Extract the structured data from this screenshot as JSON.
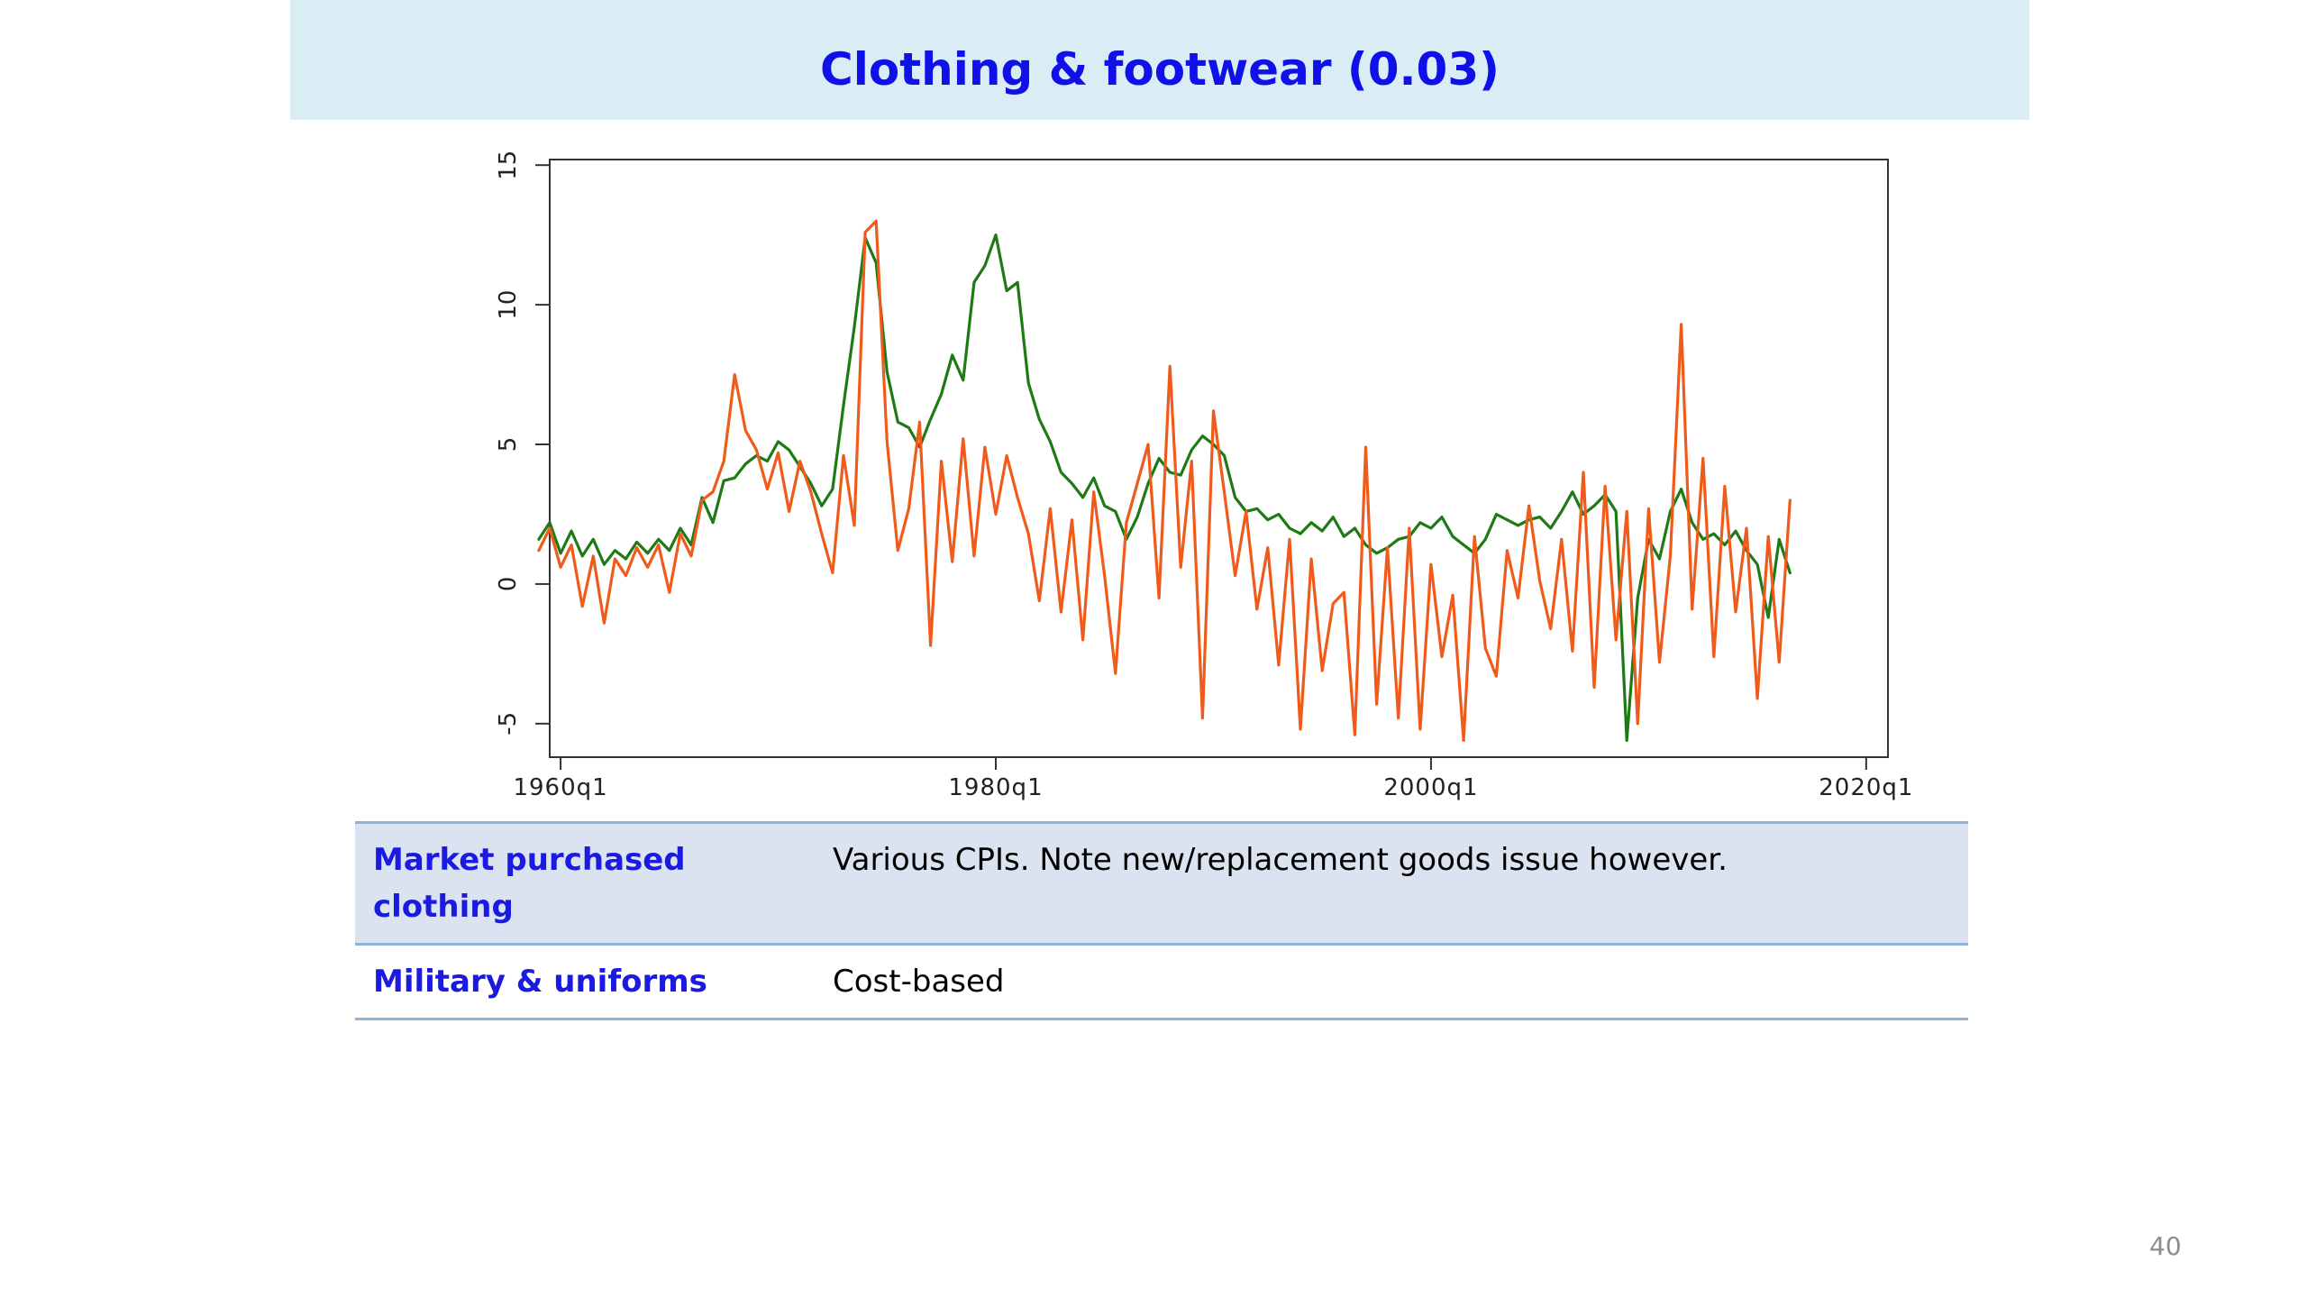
{
  "slide": {
    "title": "Clothing & footwear (0.03)",
    "page_number": "40"
  },
  "table": {
    "rows": [
      {
        "label": "Market purchased clothing",
        "value": "Various CPIs. Note new/replacement goods issue however."
      },
      {
        "label": "Military & uniforms",
        "value": "Cost-based"
      }
    ]
  },
  "chart_data": {
    "type": "line",
    "title": "",
    "xlabel": "",
    "ylabel": "",
    "xlim": [
      1959.5,
      2021
    ],
    "ylim": [
      -6.2,
      15.2
    ],
    "yticks": [
      -5,
      0,
      5,
      10,
      15
    ],
    "ytick_labels": [
      "-5",
      "0",
      "5",
      "10",
      "15"
    ],
    "xticks": [
      1960,
      1980,
      2000,
      2020
    ],
    "xtick_labels": [
      "1960q1",
      "1980q1",
      "2000q1",
      "2020q1"
    ],
    "grid": false,
    "legend": "none",
    "series": [
      {
        "color": "#1e7a14",
        "points": [
          [
            1959.0,
            1.6
          ],
          [
            1959.5,
            2.2
          ],
          [
            1960.0,
            1.1
          ],
          [
            1960.5,
            1.9
          ],
          [
            1961.0,
            1.0
          ],
          [
            1961.5,
            1.6
          ],
          [
            1962.0,
            0.7
          ],
          [
            1962.5,
            1.2
          ],
          [
            1963.0,
            0.9
          ],
          [
            1963.5,
            1.5
          ],
          [
            1964.0,
            1.1
          ],
          [
            1964.5,
            1.6
          ],
          [
            1965.0,
            1.2
          ],
          [
            1965.5,
            2.0
          ],
          [
            1966.0,
            1.4
          ],
          [
            1966.5,
            3.1
          ],
          [
            1967.0,
            2.2
          ],
          [
            1967.5,
            3.7
          ],
          [
            1968.0,
            3.8
          ],
          [
            1968.5,
            4.3
          ],
          [
            1969.0,
            4.6
          ],
          [
            1969.5,
            4.4
          ],
          [
            1970.0,
            5.1
          ],
          [
            1970.5,
            4.8
          ],
          [
            1971.0,
            4.2
          ],
          [
            1971.5,
            3.6
          ],
          [
            1972.0,
            2.8
          ],
          [
            1972.5,
            3.4
          ],
          [
            1973.0,
            6.4
          ],
          [
            1973.5,
            9.2
          ],
          [
            1974.0,
            12.4
          ],
          [
            1974.5,
            11.5
          ],
          [
            1975.0,
            7.6
          ],
          [
            1975.5,
            5.8
          ],
          [
            1976.0,
            5.6
          ],
          [
            1976.5,
            4.9
          ],
          [
            1977.0,
            5.9
          ],
          [
            1977.5,
            6.8
          ],
          [
            1978.0,
            8.2
          ],
          [
            1978.5,
            7.3
          ],
          [
            1979.0,
            10.8
          ],
          [
            1979.5,
            11.4
          ],
          [
            1980.0,
            12.5
          ],
          [
            1980.5,
            10.5
          ],
          [
            1981.0,
            10.8
          ],
          [
            1981.5,
            7.2
          ],
          [
            1982.0,
            5.9
          ],
          [
            1982.5,
            5.1
          ],
          [
            1983.0,
            4.0
          ],
          [
            1983.5,
            3.6
          ],
          [
            1984.0,
            3.1
          ],
          [
            1984.5,
            3.8
          ],
          [
            1985.0,
            2.8
          ],
          [
            1985.5,
            2.6
          ],
          [
            1986.0,
            1.6
          ],
          [
            1986.5,
            2.4
          ],
          [
            1987.0,
            3.6
          ],
          [
            1987.5,
            4.5
          ],
          [
            1988.0,
            4.0
          ],
          [
            1988.5,
            3.9
          ],
          [
            1989.0,
            4.8
          ],
          [
            1989.5,
            5.3
          ],
          [
            1990.0,
            5.0
          ],
          [
            1990.5,
            4.6
          ],
          [
            1991.0,
            3.1
          ],
          [
            1991.5,
            2.6
          ],
          [
            1992.0,
            2.7
          ],
          [
            1992.5,
            2.3
          ],
          [
            1993.0,
            2.5
          ],
          [
            1993.5,
            2.0
          ],
          [
            1994.0,
            1.8
          ],
          [
            1994.5,
            2.2
          ],
          [
            1995.0,
            1.9
          ],
          [
            1995.5,
            2.4
          ],
          [
            1996.0,
            1.7
          ],
          [
            1996.5,
            2.0
          ],
          [
            1997.0,
            1.4
          ],
          [
            1997.5,
            1.1
          ],
          [
            1998.0,
            1.3
          ],
          [
            1998.5,
            1.6
          ],
          [
            1999.0,
            1.7
          ],
          [
            1999.5,
            2.2
          ],
          [
            2000.0,
            2.0
          ],
          [
            2000.5,
            2.4
          ],
          [
            2001.0,
            1.7
          ],
          [
            2001.5,
            1.4
          ],
          [
            2002.0,
            1.1
          ],
          [
            2002.5,
            1.6
          ],
          [
            2003.0,
            2.5
          ],
          [
            2003.5,
            2.3
          ],
          [
            2004.0,
            2.1
          ],
          [
            2004.5,
            2.3
          ],
          [
            2005.0,
            2.4
          ],
          [
            2005.5,
            2.0
          ],
          [
            2006.0,
            2.6
          ],
          [
            2006.5,
            3.3
          ],
          [
            2007.0,
            2.5
          ],
          [
            2007.5,
            2.8
          ],
          [
            2008.0,
            3.2
          ],
          [
            2008.5,
            2.6
          ],
          [
            2009.0,
            -5.6
          ],
          [
            2009.5,
            -0.5
          ],
          [
            2010.0,
            1.6
          ],
          [
            2010.5,
            0.9
          ],
          [
            2011.0,
            2.6
          ],
          [
            2011.5,
            3.4
          ],
          [
            2012.0,
            2.2
          ],
          [
            2012.5,
            1.6
          ],
          [
            2013.0,
            1.8
          ],
          [
            2013.5,
            1.4
          ],
          [
            2014.0,
            1.9
          ],
          [
            2014.5,
            1.2
          ],
          [
            2015.0,
            0.7
          ],
          [
            2015.5,
            -1.2
          ],
          [
            2016.0,
            1.6
          ],
          [
            2016.5,
            0.4
          ]
        ]
      },
      {
        "color": "#f05a1a",
        "points": [
          [
            1959.0,
            1.2
          ],
          [
            1959.5,
            2.0
          ],
          [
            1960.0,
            0.6
          ],
          [
            1960.5,
            1.4
          ],
          [
            1961.0,
            -0.8
          ],
          [
            1961.5,
            1.0
          ],
          [
            1962.0,
            -1.4
          ],
          [
            1962.5,
            0.9
          ],
          [
            1963.0,
            0.3
          ],
          [
            1963.5,
            1.3
          ],
          [
            1964.0,
            0.6
          ],
          [
            1964.5,
            1.4
          ],
          [
            1965.0,
            -0.3
          ],
          [
            1965.5,
            1.8
          ],
          [
            1966.0,
            1.0
          ],
          [
            1966.5,
            3.0
          ],
          [
            1967.0,
            3.3
          ],
          [
            1967.5,
            4.4
          ],
          [
            1968.0,
            7.5
          ],
          [
            1968.5,
            5.5
          ],
          [
            1969.0,
            4.8
          ],
          [
            1969.5,
            3.4
          ],
          [
            1970.0,
            4.7
          ],
          [
            1970.5,
            2.6
          ],
          [
            1971.0,
            4.4
          ],
          [
            1971.5,
            3.3
          ],
          [
            1972.0,
            1.8
          ],
          [
            1972.5,
            0.4
          ],
          [
            1973.0,
            4.6
          ],
          [
            1973.5,
            2.1
          ],
          [
            1974.0,
            12.6
          ],
          [
            1974.5,
            13.0
          ],
          [
            1975.0,
            5.1
          ],
          [
            1975.5,
            1.2
          ],
          [
            1976.0,
            2.7
          ],
          [
            1976.5,
            5.8
          ],
          [
            1977.0,
            -2.2
          ],
          [
            1977.5,
            4.4
          ],
          [
            1978.0,
            0.8
          ],
          [
            1978.5,
            5.2
          ],
          [
            1979.0,
            1.0
          ],
          [
            1979.5,
            4.9
          ],
          [
            1980.0,
            2.5
          ],
          [
            1980.5,
            4.6
          ],
          [
            1981.0,
            3.1
          ],
          [
            1981.5,
            1.8
          ],
          [
            1982.0,
            -0.6
          ],
          [
            1982.5,
            2.7
          ],
          [
            1983.0,
            -1.0
          ],
          [
            1983.5,
            2.3
          ],
          [
            1984.0,
            -2.0
          ],
          [
            1984.5,
            3.3
          ],
          [
            1985.0,
            0.3
          ],
          [
            1985.5,
            -3.2
          ],
          [
            1986.0,
            2.2
          ],
          [
            1986.5,
            3.6
          ],
          [
            1987.0,
            5.0
          ],
          [
            1987.5,
            -0.5
          ],
          [
            1988.0,
            7.8
          ],
          [
            1988.5,
            0.6
          ],
          [
            1989.0,
            4.4
          ],
          [
            1989.5,
            -4.8
          ],
          [
            1990.0,
            6.2
          ],
          [
            1990.5,
            3.3
          ],
          [
            1991.0,
            0.3
          ],
          [
            1991.5,
            2.6
          ],
          [
            1992.0,
            -0.9
          ],
          [
            1992.5,
            1.3
          ],
          [
            1993.0,
            -2.9
          ],
          [
            1993.5,
            1.6
          ],
          [
            1994.0,
            -5.2
          ],
          [
            1994.5,
            0.9
          ],
          [
            1995.0,
            -3.1
          ],
          [
            1995.5,
            -0.7
          ],
          [
            1996.0,
            -0.3
          ],
          [
            1996.5,
            -5.4
          ],
          [
            1997.0,
            4.9
          ],
          [
            1997.5,
            -4.3
          ],
          [
            1998.0,
            1.3
          ],
          [
            1998.5,
            -4.8
          ],
          [
            1999.0,
            2.0
          ],
          [
            1999.5,
            -5.2
          ],
          [
            2000.0,
            0.7
          ],
          [
            2000.5,
            -2.6
          ],
          [
            2001.0,
            -0.4
          ],
          [
            2001.5,
            -5.6
          ],
          [
            2002.0,
            1.7
          ],
          [
            2002.5,
            -2.3
          ],
          [
            2003.0,
            -3.3
          ],
          [
            2003.5,
            1.2
          ],
          [
            2004.0,
            -0.5
          ],
          [
            2004.5,
            2.8
          ],
          [
            2005.0,
            0.1
          ],
          [
            2005.5,
            -1.6
          ],
          [
            2006.0,
            1.6
          ],
          [
            2006.5,
            -2.4
          ],
          [
            2007.0,
            4.0
          ],
          [
            2007.5,
            -3.7
          ],
          [
            2008.0,
            3.5
          ],
          [
            2008.5,
            -2.0
          ],
          [
            2009.0,
            2.6
          ],
          [
            2009.5,
            -5.0
          ],
          [
            2010.0,
            2.7
          ],
          [
            2010.5,
            -2.8
          ],
          [
            2011.0,
            1.0
          ],
          [
            2011.5,
            9.3
          ],
          [
            2012.0,
            -0.9
          ],
          [
            2012.5,
            4.5
          ],
          [
            2013.0,
            -2.6
          ],
          [
            2013.5,
            3.5
          ],
          [
            2014.0,
            -1.0
          ],
          [
            2014.5,
            2.0
          ],
          [
            2015.0,
            -4.1
          ],
          [
            2015.5,
            1.7
          ],
          [
            2016.0,
            -2.8
          ],
          [
            2016.5,
            3.0
          ]
        ]
      }
    ]
  }
}
